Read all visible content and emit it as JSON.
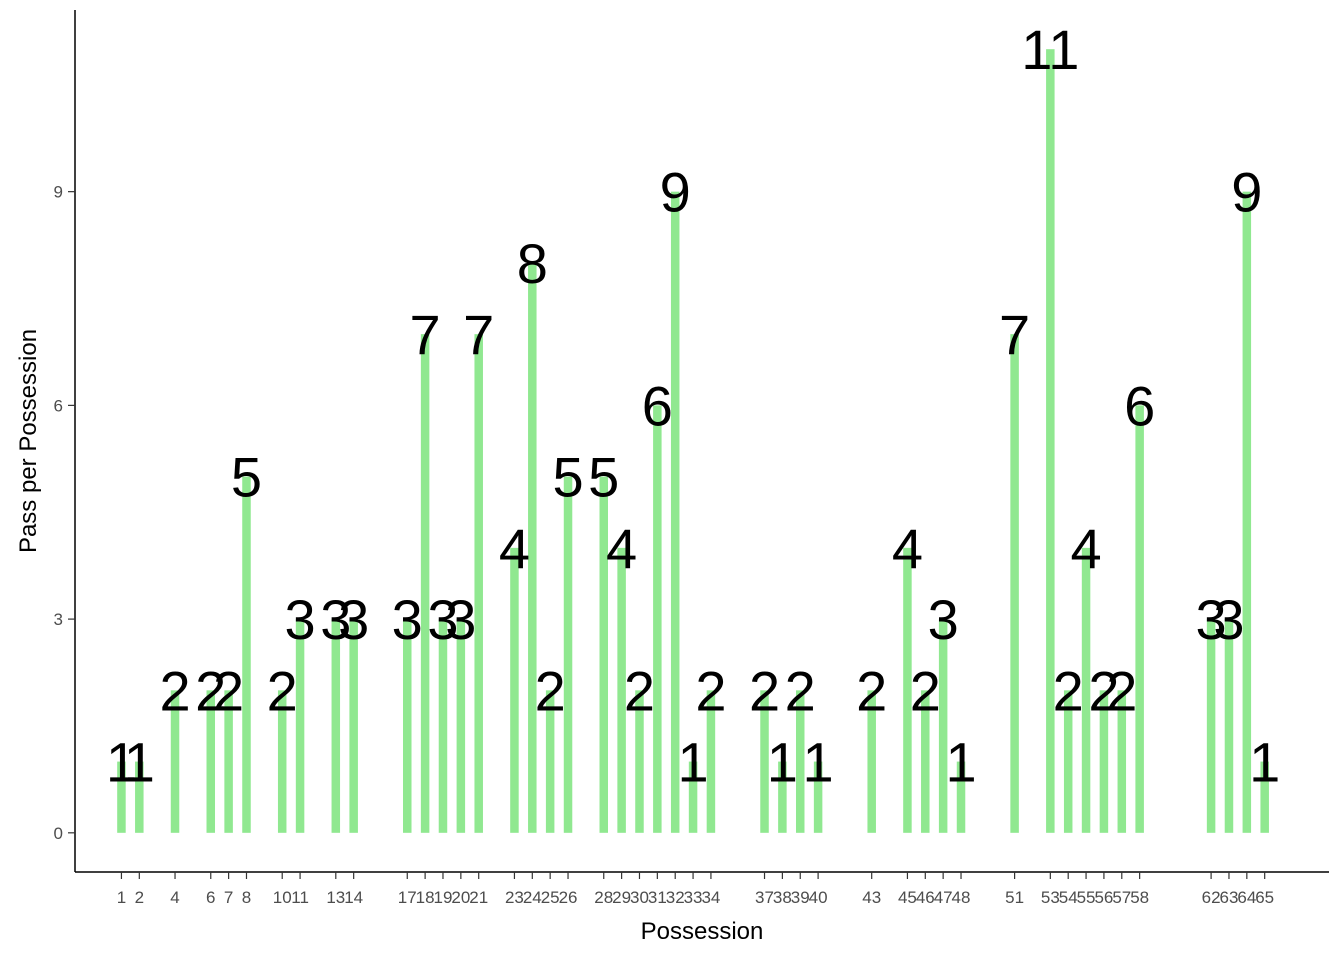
{
  "chart_data": {
    "type": "bar",
    "xlabel": "Possession",
    "ylabel": "Pass per Possession",
    "xlim": [
      -1.6,
      68.6
    ],
    "ylim": [
      -0.55,
      11.55
    ],
    "y_ticks": [
      0,
      3,
      6,
      9
    ],
    "grid": false,
    "bar_color": "#90e890",
    "x": [
      1,
      2,
      4,
      6,
      7,
      8,
      10,
      11,
      13,
      14,
      17,
      18,
      19,
      20,
      21,
      23,
      24,
      25,
      26,
      28,
      29,
      30,
      31,
      32,
      33,
      34,
      37,
      38,
      39,
      40,
      43,
      45,
      46,
      47,
      48,
      51,
      53,
      54,
      55,
      56,
      57,
      58,
      62,
      63,
      64,
      65
    ],
    "values": [
      1,
      1,
      2,
      2,
      2,
      5,
      2,
      3,
      3,
      3,
      3,
      7,
      3,
      3,
      7,
      4,
      8,
      2,
      5,
      5,
      4,
      2,
      6,
      9,
      1,
      2,
      2,
      1,
      2,
      1,
      2,
      4,
      2,
      3,
      1,
      7,
      11,
      2,
      4,
      2,
      2,
      6,
      3,
      3,
      9,
      1
    ],
    "x_tick_labels": [
      "1",
      "2",
      "4",
      "6",
      "7",
      "8",
      "10",
      "11",
      "13",
      "14",
      "17",
      "18",
      "19",
      "20",
      "21",
      "23",
      "24",
      "25",
      "26",
      "28",
      "29",
      "30",
      "31",
      "32",
      "33",
      "34",
      "37",
      "38",
      "39",
      "40",
      "43",
      "45",
      "46",
      "47",
      "48",
      "51",
      "53",
      "54",
      "55",
      "56",
      "57",
      "58",
      "62",
      "63",
      "64",
      "65"
    ],
    "data_labels": [
      "1",
      "1",
      "2",
      "2",
      "2",
      "5",
      "2",
      "3",
      "3",
      "3",
      "3",
      "7",
      "3",
      "3",
      "7",
      "4",
      "8",
      "2",
      "5",
      "5",
      "4",
      "2",
      "6",
      "9",
      "1",
      "2",
      "2",
      "1",
      "2",
      "1",
      "2",
      "4",
      "2",
      "3",
      "1",
      "7",
      "11",
      "2",
      "4",
      "2",
      "2",
      "6",
      "3",
      "3",
      "9",
      "1"
    ]
  }
}
